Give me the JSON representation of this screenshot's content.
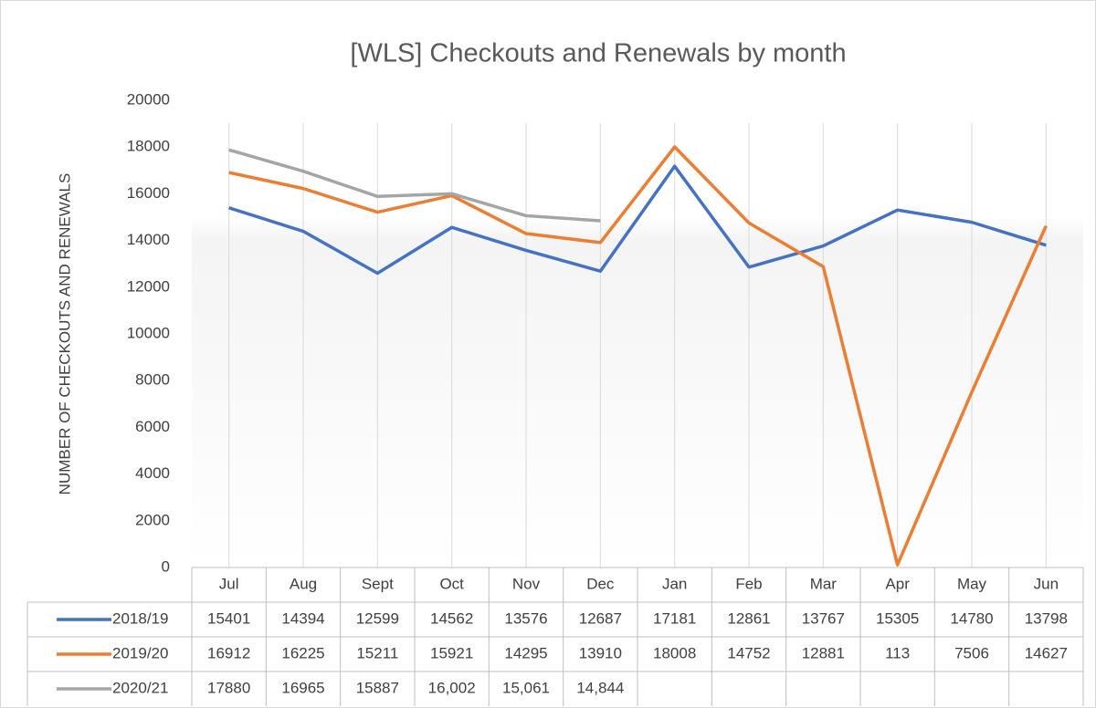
{
  "chart_data": {
    "type": "line",
    "title": "[WLS] Checkouts and Renewals by month",
    "y_label": "NUMBER OF CHECKOUTS AND RENEWALS",
    "categories": [
      "Jul",
      "Aug",
      "Sept",
      "Oct",
      "Nov",
      "Dec",
      "Jan",
      "Feb",
      "Mar",
      "Apr",
      "May",
      "Jun"
    ],
    "series": [
      {
        "name": "2018/19",
        "color": "#4472c4",
        "values": [
          15401,
          14394,
          12599,
          14562,
          13576,
          12687,
          17181,
          12861,
          13767,
          15305,
          14780,
          13798
        ]
      },
      {
        "name": "2019/20",
        "color": "#ed7d31",
        "values": [
          16912,
          16225,
          15211,
          15921,
          14295,
          13910,
          18008,
          14752,
          12881,
          113,
          7506,
          14627
        ]
      },
      {
        "name": "2020/21",
        "color": "#a5a5a5",
        "values": [
          17880,
          16965,
          15887,
          16002,
          15061,
          14844,
          null,
          null,
          null,
          null,
          null,
          null
        ],
        "value_labels": [
          "17880",
          "16965",
          "15887",
          "16,002",
          "15,061",
          "14,844",
          null,
          null,
          null,
          null,
          null,
          null
        ]
      }
    ],
    "ylim": [
      0,
      20000
    ],
    "yticks": [
      0,
      2000,
      4000,
      6000,
      8000,
      10000,
      12000,
      14000,
      16000,
      18000,
      20000
    ],
    "grid": "x",
    "data_table": true
  }
}
